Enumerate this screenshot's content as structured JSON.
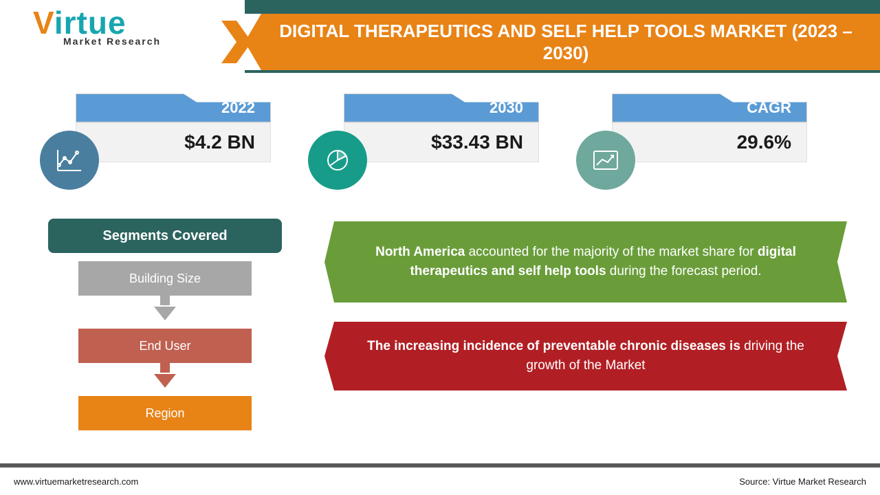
{
  "colors": {
    "orange": "#e88316",
    "teal_dark": "#2b635f",
    "blue_tab": "#5b9bd5",
    "stat_bg": "#f2f2f2",
    "icon_1": "#4a7e9e",
    "icon_2": "#189c8a",
    "icon_3": "#6fa89c",
    "seg_grey": "#a7a7a7",
    "seg_red": "#c06050",
    "green_ribbon": "#6a9d3a",
    "red_ribbon": "#b11f24",
    "footer_bar": "#595959",
    "text_dark": "#1a1a1a",
    "white": "#ffffff"
  },
  "logo": {
    "v": "V",
    "rest": "irtue",
    "sub": "Market Research"
  },
  "title": "DIGITAL THERAPEUTICS AND SELF HELP TOOLS MARKET (2023 – 2030)",
  "stats": [
    {
      "label": "2022",
      "value": "$4.2 BN",
      "icon_bg": "#4a7e9e",
      "icon": "line-chart"
    },
    {
      "label": "2030",
      "value": "$33.43 BN",
      "icon_bg": "#189c8a",
      "icon": "pie-chart"
    },
    {
      "label": "CAGR",
      "value": "29.6%",
      "icon_bg": "#6fa89c",
      "icon": "growth-chart"
    }
  ],
  "segments": {
    "header": "Segments Covered",
    "items": [
      "Building Size",
      "End User",
      "Region"
    ]
  },
  "insights": {
    "green_html": "<b>North America</b> accounted for the majority of the market share for <b>digital therapeutics and self help tools</b> during the forecast period.",
    "red_html": "<b>The increasing incidence of preventable chronic diseases is</b> driving the growth of the Market"
  },
  "footer": {
    "left": "www.virtuemarketresearch.com",
    "right": "Source: Virtue Market Research"
  }
}
